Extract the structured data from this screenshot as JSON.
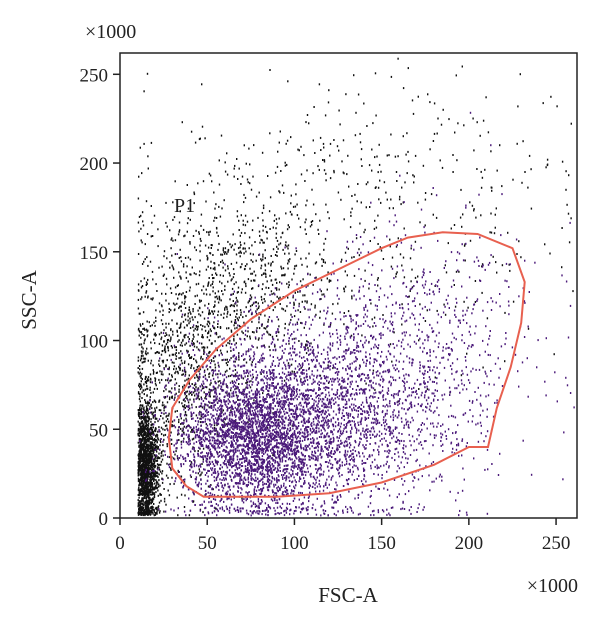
{
  "chart_data": {
    "type": "scatter",
    "title": "",
    "xlabel": "FSC-A",
    "ylabel": "SSC-A",
    "x_multiplier": "×1000",
    "y_multiplier": "×1000",
    "xlim": [
      0,
      262
    ],
    "ylim": [
      0,
      262
    ],
    "x_ticks": [
      0,
      50,
      100,
      150,
      200,
      250
    ],
    "y_ticks": [
      0,
      50,
      100,
      150,
      200,
      250
    ],
    "grid": false,
    "legend": "none",
    "gate": {
      "label": "P1",
      "color": "#e8604f",
      "polygon": [
        [
          28,
          45
        ],
        [
          30,
          62
        ],
        [
          40,
          78
        ],
        [
          55,
          95
        ],
        [
          75,
          112
        ],
        [
          100,
          128
        ],
        [
          125,
          140
        ],
        [
          150,
          152
        ],
        [
          165,
          158
        ],
        [
          185,
          161
        ],
        [
          205,
          160
        ],
        [
          225,
          152
        ],
        [
          232,
          133
        ],
        [
          230,
          110
        ],
        [
          224,
          85
        ],
        [
          216,
          62
        ],
        [
          211,
          40
        ],
        [
          200,
          40
        ],
        [
          180,
          30
        ],
        [
          150,
          20
        ],
        [
          120,
          14
        ],
        [
          90,
          12
        ],
        [
          60,
          12
        ],
        [
          48,
          12
        ],
        [
          38,
          18
        ],
        [
          30,
          28
        ],
        [
          28,
          45
        ]
      ]
    },
    "series": [
      {
        "color": "#111111",
        "description_of_density": "ungated events",
        "clusters": [
          {
            "cx": 14,
            "cy": 30,
            "sx": 4,
            "sy": 18,
            "n": 1500
          },
          {
            "cx": 35,
            "cy": 80,
            "sx": 18,
            "sy": 35,
            "n": 900
          },
          {
            "cx": 70,
            "cy": 130,
            "sx": 28,
            "sy": 28,
            "n": 700
          },
          {
            "cx": 140,
            "cy": 175,
            "sx": 60,
            "sy": 45,
            "n": 550
          }
        ]
      },
      {
        "color": "#4b1a7a",
        "description_of_density": "gated events",
        "clusters": [
          {
            "cx": 75,
            "cy": 45,
            "sx": 22,
            "sy": 20,
            "n": 3500
          },
          {
            "cx": 115,
            "cy": 60,
            "sx": 35,
            "sy": 28,
            "n": 2200
          },
          {
            "cx": 170,
            "cy": 95,
            "sx": 35,
            "sy": 35,
            "n": 700
          }
        ]
      }
    ]
  }
}
